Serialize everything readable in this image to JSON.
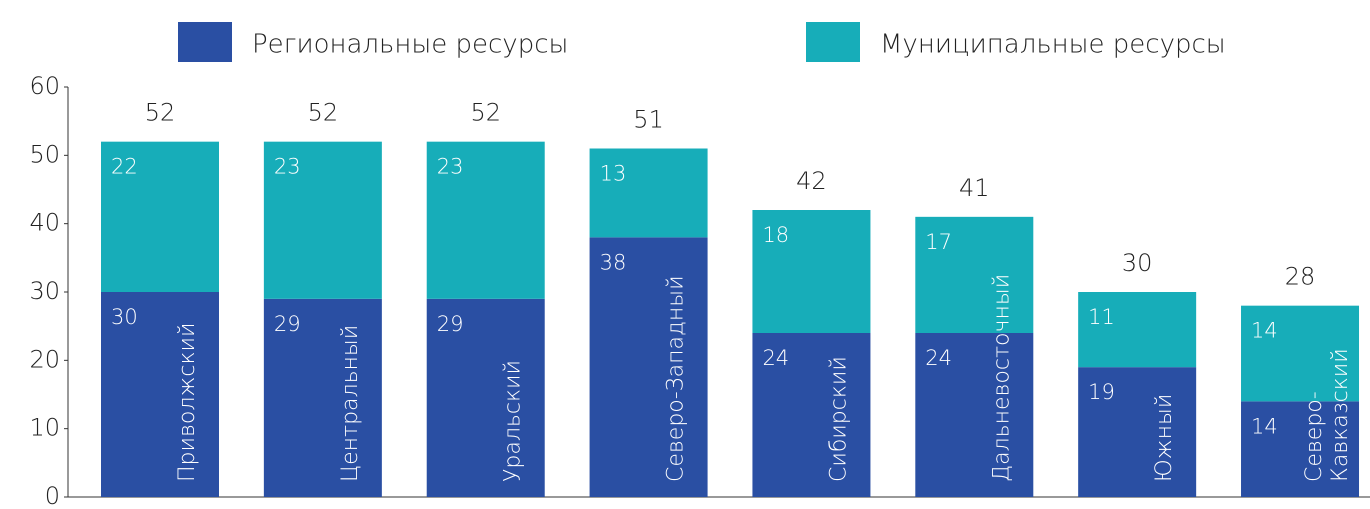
{
  "chart_data": {
    "type": "stacked_bar",
    "categories": [
      "Приволжский",
      "Центральный",
      "Уральский",
      "Северо-Западный",
      "Сибирский",
      "Дальневосточный",
      "Южный",
      "Северо-Кавказский"
    ],
    "series": [
      {
        "name": "Региональные ресурсы",
        "color": "#2a4fa3",
        "values": [
          30,
          29,
          29,
          38,
          24,
          24,
          19,
          14
        ]
      },
      {
        "name": "Муниципальные ресурсы",
        "color": "#17adb9",
        "values": [
          22,
          23,
          23,
          13,
          18,
          17,
          11,
          14
        ]
      }
    ],
    "totals": [
      52,
      52,
      52,
      51,
      42,
      41,
      30,
      28
    ],
    "ylim": [
      0,
      60
    ],
    "yticks": [
      0,
      10,
      20,
      30,
      40,
      50,
      60
    ],
    "grid": false,
    "legend": "top"
  }
}
